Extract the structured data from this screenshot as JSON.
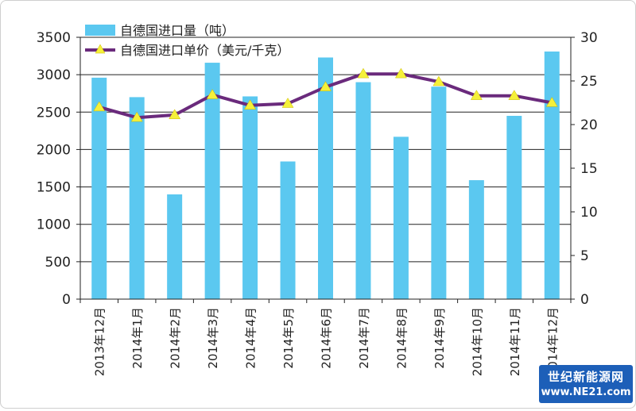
{
  "chart_data": {
    "type": "bar+line",
    "categories": [
      "2013年12月",
      "2014年1月",
      "2014年2月",
      "2014年3月",
      "2014年4月",
      "2014年5月",
      "2014年6月",
      "2014年7月",
      "2014年8月",
      "2014年9月",
      "2014年10月",
      "2014年11月",
      "2014年12月"
    ],
    "series": [
      {
        "name": "自德国进口量（吨）",
        "type": "bar",
        "axis": "left",
        "color": "#5bc8f0",
        "values": [
          2960,
          2700,
          1400,
          3160,
          2710,
          1840,
          3230,
          2900,
          2170,
          2840,
          1590,
          2450,
          3310
        ]
      },
      {
        "name": "自德国进口单价（美元/千克）",
        "type": "line",
        "axis": "right",
        "color": "#6a2a7c",
        "marker_color": "#f5f03a",
        "values": [
          22.0,
          20.8,
          21.1,
          23.4,
          22.2,
          22.4,
          24.3,
          25.8,
          25.8,
          24.9,
          23.3,
          23.3,
          22.5
        ]
      }
    ],
    "y_left": {
      "ylim": [
        0,
        3500
      ],
      "ticks": [
        "0",
        "500",
        "1000",
        "1500",
        "2000",
        "2500",
        "3000",
        "3500"
      ]
    },
    "y_right": {
      "ylim": [
        0,
        30
      ],
      "ticks": [
        "0",
        "5",
        "10",
        "15",
        "20",
        "25",
        "30"
      ]
    },
    "grid": true,
    "legend_position": "top-left"
  },
  "watermark": {
    "line1": "世纪新能源网",
    "line2": "www.NE21.com"
  }
}
